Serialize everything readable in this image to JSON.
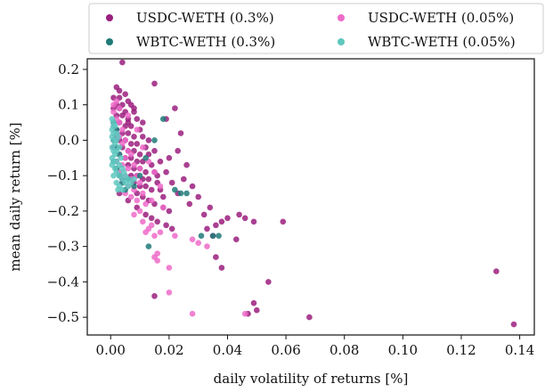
{
  "chart_data": {
    "type": "scatter",
    "xlabel": "daily volatility of returns [%]",
    "ylabel": "mean daily return [%]",
    "xlim": [
      -0.008,
      0.145
    ],
    "ylim": [
      -0.55,
      0.23
    ],
    "xticks": [
      0.0,
      0.02,
      0.04,
      0.06,
      0.08,
      0.1,
      0.12,
      0.14
    ],
    "xtick_labels": [
      "0.00",
      "0.02",
      "0.04",
      "0.06",
      "0.08",
      "0.10",
      "0.12",
      "0.14"
    ],
    "yticks": [
      0.2,
      0.1,
      0.0,
      -0.1,
      -0.2,
      -0.3,
      -0.4,
      -0.5
    ],
    "ytick_labels": [
      "0.2",
      "0.1",
      "0.0",
      "−0.1",
      "−0.2",
      "−0.3",
      "−0.4",
      "−0.5"
    ],
    "grid": false,
    "legend_position": "top, above plot, 2 columns",
    "series": [
      {
        "name": "USDC-WETH (0.3%)",
        "color": "#9b1f7e",
        "points": [
          [
            0.004,
            0.22
          ],
          [
            0.002,
            0.15
          ],
          [
            0.003,
            0.14
          ],
          [
            0.005,
            0.13
          ],
          [
            0.001,
            0.12
          ],
          [
            0.003,
            0.12
          ],
          [
            0.006,
            0.11
          ],
          [
            0.002,
            0.1
          ],
          [
            0.004,
            0.1
          ],
          [
            0.007,
            0.1
          ],
          [
            0.001,
            0.09
          ],
          [
            0.003,
            0.09
          ],
          [
            0.005,
            0.08
          ],
          [
            0.008,
            0.08
          ],
          [
            0.002,
            0.07
          ],
          [
            0.004,
            0.07
          ],
          [
            0.006,
            0.06
          ],
          [
            0.009,
            0.06
          ],
          [
            0.001,
            0.05
          ],
          [
            0.003,
            0.05
          ],
          [
            0.005,
            0.04
          ],
          [
            0.007,
            0.04
          ],
          [
            0.01,
            0.03
          ],
          [
            0.002,
            0.03
          ],
          [
            0.004,
            0.02
          ],
          [
            0.006,
            0.02
          ],
          [
            0.008,
            0.01
          ],
          [
            0.011,
            0.01
          ],
          [
            0.003,
            0.0
          ],
          [
            0.005,
            0.0
          ],
          [
            0.007,
            -0.01
          ],
          [
            0.009,
            -0.01
          ],
          [
            0.012,
            -0.02
          ],
          [
            0.004,
            -0.02
          ],
          [
            0.006,
            -0.03
          ],
          [
            0.008,
            -0.03
          ],
          [
            0.01,
            -0.04
          ],
          [
            0.013,
            -0.04
          ],
          [
            0.005,
            -0.05
          ],
          [
            0.007,
            -0.05
          ],
          [
            0.009,
            -0.06
          ],
          [
            0.011,
            -0.06
          ],
          [
            0.014,
            -0.07
          ],
          [
            0.006,
            -0.07
          ],
          [
            0.008,
            -0.08
          ],
          [
            0.01,
            -0.08
          ],
          [
            0.012,
            -0.09
          ],
          [
            0.015,
            -0.09
          ],
          [
            0.007,
            -0.1
          ],
          [
            0.009,
            -0.1
          ],
          [
            0.011,
            -0.11
          ],
          [
            0.013,
            -0.11
          ],
          [
            0.016,
            -0.12
          ],
          [
            0.008,
            -0.12
          ],
          [
            0.01,
            -0.13
          ],
          [
            0.012,
            -0.13
          ],
          [
            0.014,
            -0.14
          ],
          [
            0.017,
            -0.14
          ],
          [
            0.009,
            -0.15
          ],
          [
            0.011,
            -0.16
          ],
          [
            0.013,
            -0.17
          ],
          [
            0.015,
            -0.18
          ],
          [
            0.018,
            -0.19
          ],
          [
            0.02,
            -0.2
          ],
          [
            0.012,
            -0.21
          ],
          [
            0.014,
            -0.22
          ],
          [
            0.016,
            -0.23
          ],
          [
            0.019,
            -0.24
          ],
          [
            0.021,
            -0.25
          ],
          [
            0.015,
            0.16
          ],
          [
            0.022,
            0.09
          ],
          [
            0.019,
            0.06
          ],
          [
            0.024,
            0.02
          ],
          [
            0.023,
            -0.03
          ],
          [
            0.026,
            -0.07
          ],
          [
            0.025,
            -0.11
          ],
          [
            0.028,
            -0.13
          ],
          [
            0.03,
            -0.16
          ],
          [
            0.027,
            -0.18
          ],
          [
            0.032,
            -0.21
          ],
          [
            0.034,
            -0.19
          ],
          [
            0.033,
            -0.25
          ],
          [
            0.036,
            -0.24
          ],
          [
            0.035,
            -0.27
          ],
          [
            0.038,
            -0.23
          ],
          [
            0.04,
            -0.22
          ],
          [
            0.043,
            -0.28
          ],
          [
            0.044,
            -0.21
          ],
          [
            0.046,
            -0.22
          ],
          [
            0.049,
            -0.23
          ],
          [
            0.036,
            -0.33
          ],
          [
            0.038,
            -0.36
          ],
          [
            0.059,
            -0.23
          ],
          [
            0.054,
            -0.4
          ],
          [
            0.049,
            -0.46
          ],
          [
            0.047,
            -0.49
          ],
          [
            0.05,
            -0.48
          ],
          [
            0.068,
            -0.5
          ],
          [
            0.015,
            -0.44
          ],
          [
            0.132,
            -0.37
          ],
          [
            0.138,
            -0.52
          ],
          [
            0.003,
            -0.15
          ],
          [
            0.006,
            -0.17
          ],
          [
            0.009,
            -0.19
          ],
          [
            0.004,
            -0.11
          ],
          [
            0.002,
            -0.06
          ],
          [
            0.001,
            -0.02
          ],
          [
            0.002,
            0.01
          ],
          [
            0.006,
            0.05
          ],
          [
            0.008,
            0.09
          ],
          [
            0.011,
            0.05
          ],
          [
            0.013,
            0.0
          ],
          [
            0.015,
            -0.03
          ],
          [
            0.017,
            -0.06
          ],
          [
            0.019,
            -0.09
          ],
          [
            0.021,
            -0.12
          ],
          [
            0.023,
            -0.15
          ],
          [
            0.018,
            -0.16
          ],
          [
            0.016,
            -0.1
          ],
          [
            0.02,
            -0.05
          ]
        ]
      },
      {
        "name": "USDC-WETH (0.05%)",
        "color": "#ee6bc9",
        "points": [
          [
            0.001,
            0.08
          ],
          [
            0.002,
            0.06
          ],
          [
            0.001,
            0.04
          ],
          [
            0.003,
            0.05
          ],
          [
            0.002,
            0.02
          ],
          [
            0.004,
            0.03
          ],
          [
            0.001,
            0.0
          ],
          [
            0.003,
            0.01
          ],
          [
            0.005,
            0.0
          ],
          [
            0.002,
            -0.02
          ],
          [
            0.004,
            -0.01
          ],
          [
            0.006,
            -0.03
          ],
          [
            0.003,
            -0.04
          ],
          [
            0.005,
            -0.05
          ],
          [
            0.007,
            -0.04
          ],
          [
            0.002,
            -0.06
          ],
          [
            0.004,
            -0.07
          ],
          [
            0.006,
            -0.08
          ],
          [
            0.008,
            -0.07
          ],
          [
            0.003,
            -0.09
          ],
          [
            0.005,
            -0.1
          ],
          [
            0.007,
            -0.11
          ],
          [
            0.009,
            -0.1
          ],
          [
            0.004,
            -0.12
          ],
          [
            0.006,
            -0.13
          ],
          [
            0.008,
            -0.14
          ],
          [
            0.01,
            -0.12
          ],
          [
            0.005,
            -0.15
          ],
          [
            0.007,
            -0.16
          ],
          [
            0.009,
            -0.17
          ],
          [
            0.011,
            -0.15
          ],
          [
            0.012,
            -0.18
          ],
          [
            0.01,
            -0.2
          ],
          [
            0.008,
            -0.21
          ],
          [
            0.011,
            -0.23
          ],
          [
            0.013,
            -0.25
          ],
          [
            0.014,
            -0.24
          ],
          [
            0.012,
            -0.26
          ],
          [
            0.015,
            -0.27
          ],
          [
            0.017,
            -0.26
          ],
          [
            0.016,
            -0.32
          ],
          [
            0.015,
            -0.33
          ],
          [
            0.016,
            -0.34
          ],
          [
            0.02,
            -0.36
          ],
          [
            0.028,
            -0.28
          ],
          [
            0.03,
            -0.29
          ],
          [
            0.022,
            -0.27
          ],
          [
            0.033,
            -0.3
          ],
          [
            0.02,
            -0.43
          ],
          [
            0.028,
            -0.49
          ],
          [
            0.046,
            -0.49
          ],
          [
            0.001,
            0.1
          ],
          [
            0.002,
            0.11
          ],
          [
            0.003,
            0.09
          ],
          [
            0.006,
            0.07
          ],
          [
            0.009,
            0.03
          ],
          [
            0.011,
            -0.02
          ],
          [
            0.013,
            -0.06
          ],
          [
            0.015,
            -0.09
          ],
          [
            0.017,
            -0.13
          ],
          [
            0.014,
            -0.17
          ],
          [
            0.018,
            -0.19
          ],
          [
            0.01,
            -0.08
          ]
        ]
      },
      {
        "name": "WBTC-WETH (0.3%)",
        "color": "#1f7a78",
        "points": [
          [
            0.001,
            0.05
          ],
          [
            0.002,
            0.03
          ],
          [
            0.001,
            0.0
          ],
          [
            0.002,
            -0.02
          ],
          [
            0.003,
            -0.04
          ],
          [
            0.001,
            -0.06
          ],
          [
            0.002,
            -0.08
          ],
          [
            0.003,
            -0.1
          ],
          [
            0.004,
            -0.12
          ],
          [
            0.005,
            -0.14
          ],
          [
            0.006,
            -0.11
          ],
          [
            0.008,
            -0.13
          ],
          [
            0.015,
            0.0
          ],
          [
            0.018,
            0.06
          ],
          [
            0.022,
            -0.14
          ],
          [
            0.024,
            -0.15
          ],
          [
            0.026,
            -0.15
          ],
          [
            0.031,
            -0.27
          ],
          [
            0.035,
            -0.27
          ],
          [
            0.037,
            -0.27
          ],
          [
            0.013,
            -0.3
          ],
          [
            0.01,
            -0.1
          ],
          [
            0.012,
            -0.05
          ]
        ]
      },
      {
        "name": "WBTC-WETH (0.05%)",
        "color": "#5fc8bf",
        "points": [
          [
            0.0005,
            0.06
          ],
          [
            0.001,
            0.05
          ],
          [
            0.0015,
            0.04
          ],
          [
            0.0005,
            0.03
          ],
          [
            0.001,
            0.02
          ],
          [
            0.002,
            0.02
          ],
          [
            0.0005,
            0.01
          ],
          [
            0.001,
            0.0
          ],
          [
            0.002,
            0.0
          ],
          [
            0.0015,
            -0.01
          ],
          [
            0.0005,
            -0.02
          ],
          [
            0.001,
            -0.03
          ],
          [
            0.002,
            -0.03
          ],
          [
            0.0015,
            -0.04
          ],
          [
            0.0005,
            -0.05
          ],
          [
            0.001,
            -0.06
          ],
          [
            0.002,
            -0.06
          ],
          [
            0.003,
            -0.07
          ],
          [
            0.0015,
            -0.08
          ],
          [
            0.002,
            -0.09
          ],
          [
            0.001,
            -0.1
          ],
          [
            0.003,
            -0.1
          ],
          [
            0.004,
            -0.11
          ],
          [
            0.002,
            -0.12
          ],
          [
            0.003,
            -0.13
          ],
          [
            0.004,
            -0.14
          ],
          [
            0.005,
            -0.12
          ],
          [
            0.006,
            -0.11
          ],
          [
            0.0025,
            0.01
          ],
          [
            0.003,
            -0.02
          ],
          [
            0.0035,
            -0.05
          ],
          [
            0.004,
            -0.08
          ],
          [
            0.0045,
            -0.09
          ],
          [
            0.005,
            -0.1
          ],
          [
            0.006,
            -0.13
          ],
          [
            0.007,
            -0.12
          ],
          [
            0.008,
            -0.11
          ],
          [
            0.0025,
            -0.14
          ],
          [
            0.001,
            0.04
          ],
          [
            0.0005,
            -0.07
          ]
        ]
      }
    ]
  }
}
